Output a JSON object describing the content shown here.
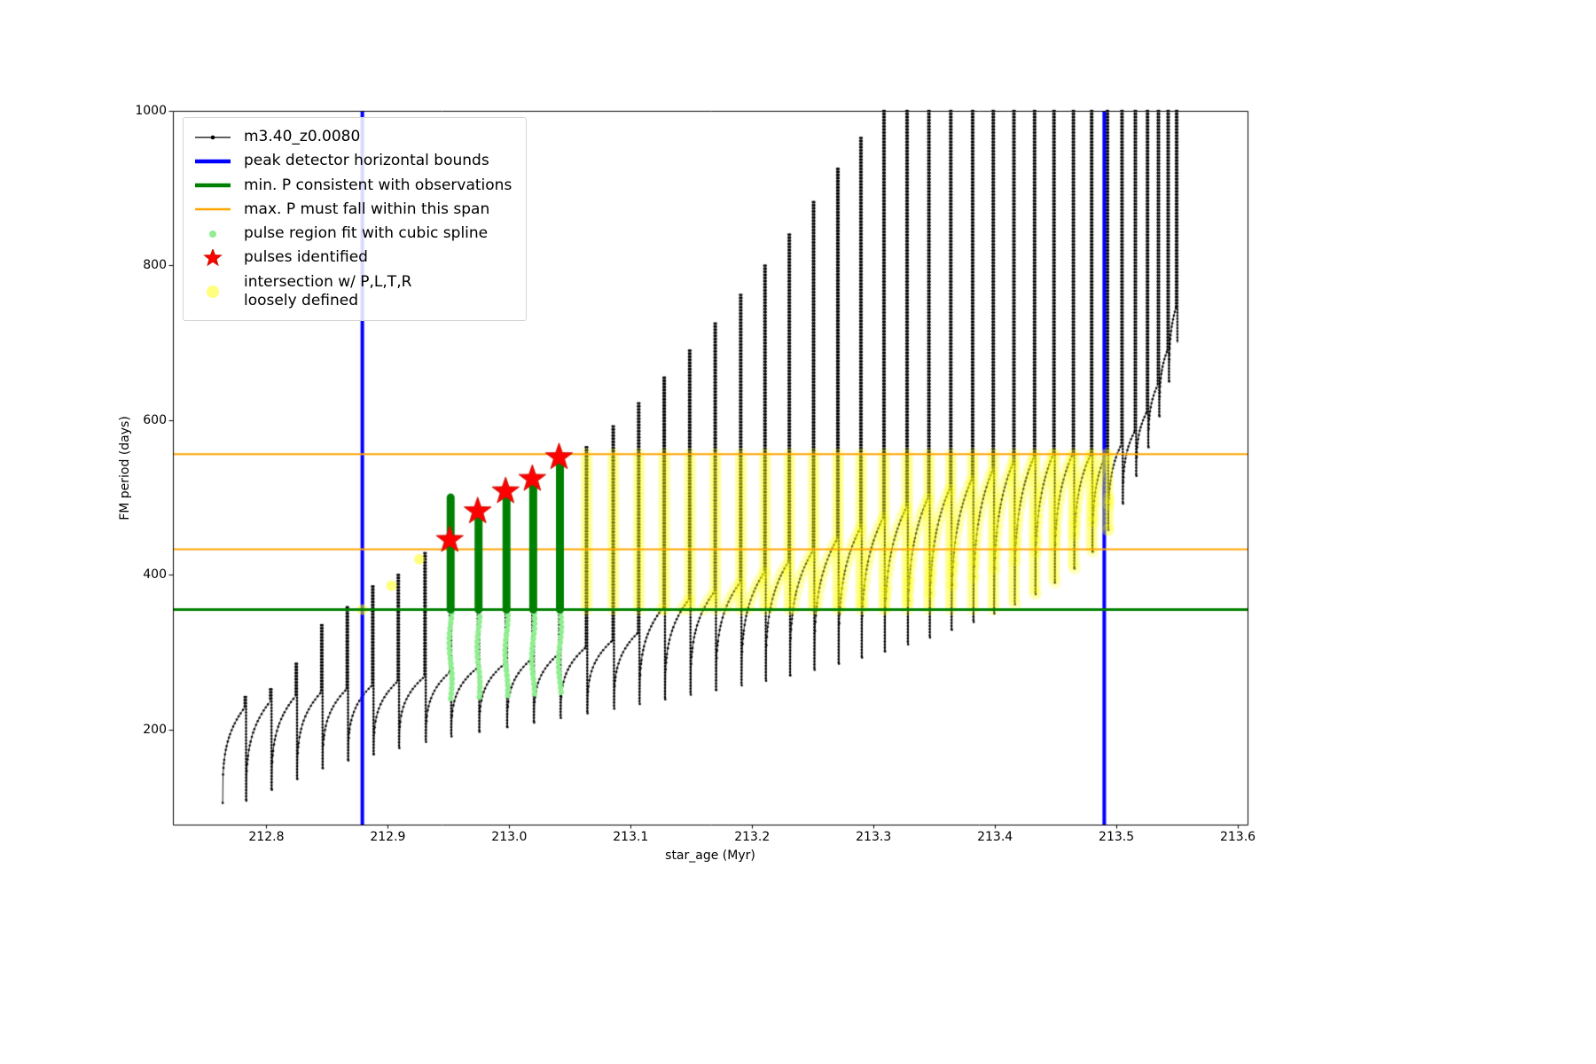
{
  "page": {
    "background": "#ffffff"
  },
  "colors": {
    "track": "#000000",
    "peak_bounds": "#0000ff",
    "min_p": "#008000",
    "max_p": "#ffa500",
    "pulse_region": "#90ee90",
    "pulses": "#ff0000",
    "intersection": "#ffff00"
  },
  "legend": {
    "items": [
      {
        "label": "m3.40_z0.0080",
        "glyph": "line-dot",
        "color_key": "track"
      },
      {
        "label": "peak detector horizontal bounds",
        "glyph": "thick-line",
        "color_key": "peak_bounds"
      },
      {
        "label": "min. P consistent with observations",
        "glyph": "thick-line",
        "color_key": "min_p"
      },
      {
        "label": "max. P must fall within this span",
        "glyph": "line",
        "color_key": "max_p"
      },
      {
        "label": "pulse region fit with cubic spline",
        "glyph": "small-dot",
        "color_key": "pulse_region"
      },
      {
        "label": "pulses identified",
        "glyph": "star",
        "color_key": "pulses"
      },
      {
        "label": "intersection w/ P,L,T,R\nloosely defined",
        "glyph": "big-dot",
        "color_key": "intersection"
      }
    ]
  },
  "chart_data": {
    "type": "line",
    "title": "",
    "xlabel": "star_age (Myr)",
    "ylabel": "FM period (days)",
    "xlim": [
      212.723,
      213.608
    ],
    "ylim": [
      77,
      1000
    ],
    "xticks": [
      212.8,
      212.9,
      213.0,
      213.1,
      213.2,
      213.3,
      213.4,
      213.5,
      213.6
    ],
    "xtick_labels": [
      "212.8",
      "212.9",
      "213.0",
      "213.1",
      "213.2",
      "213.3",
      "213.4",
      "213.5",
      "213.6"
    ],
    "yticks": [
      200,
      400,
      600,
      800,
      1000
    ],
    "ytick_labels": [
      "200",
      "400",
      "600",
      "800",
      "1000"
    ],
    "grid": false,
    "legend_position": "upper left",
    "series": [
      {
        "name": "m3.40_z0.0080",
        "color": "#000000",
        "marker": "point"
      }
    ],
    "peak_detector_bounds_x": [
      212.879,
      213.49
    ],
    "min_P_consistent_y": 355,
    "max_P_span_y": [
      433,
      556
    ],
    "pulses_identified_xy": [
      [
        212.951,
        445
      ],
      [
        212.974,
        482
      ],
      [
        212.997,
        508
      ],
      [
        213.019,
        524
      ],
      [
        213.041,
        552
      ]
    ],
    "pulse_region_columns": [
      {
        "x": 212.951,
        "top": 500,
        "dot_bottom": 240
      },
      {
        "x": 212.974,
        "top": 480,
        "dot_bottom": 242
      },
      {
        "x": 212.997,
        "top": 505,
        "dot_bottom": 244
      },
      {
        "x": 213.019,
        "top": 524,
        "dot_bottom": 246
      },
      {
        "x": 213.041,
        "top": 552,
        "dot_bottom": 248
      }
    ],
    "intersection_band": {
      "x_range": [
        213.05,
        213.494
      ],
      "y_range": [
        355,
        556
      ]
    },
    "intersection_extra_points": [
      [
        212.879,
        355
      ],
      [
        212.903,
        386
      ],
      [
        212.926,
        420
      ]
    ],
    "track_start": [
      212.764,
      105
    ],
    "track_pulses": [
      [
        212.782,
        228,
        242,
        108
      ],
      [
        212.803,
        236,
        252,
        122
      ],
      [
        212.824,
        243,
        285,
        136
      ],
      [
        212.845,
        248,
        335,
        150
      ],
      [
        212.866,
        252,
        358,
        160
      ],
      [
        212.887,
        257,
        385,
        168
      ],
      [
        212.908,
        262,
        400,
        176
      ],
      [
        212.93,
        268,
        428,
        184
      ],
      [
        212.951,
        274,
        500,
        191
      ],
      [
        212.974,
        280,
        480,
        197
      ],
      [
        212.997,
        286,
        505,
        203
      ],
      [
        213.019,
        292,
        524,
        209
      ],
      [
        213.041,
        298,
        552,
        215
      ],
      [
        213.063,
        306,
        565,
        221
      ],
      [
        213.085,
        315,
        592,
        227
      ],
      [
        213.106,
        325,
        622,
        233
      ],
      [
        213.127,
        358,
        655,
        239
      ],
      [
        213.148,
        368,
        690,
        245
      ],
      [
        213.169,
        378,
        725,
        251
      ],
      [
        213.19,
        390,
        762,
        257
      ],
      [
        213.21,
        403,
        800,
        263
      ],
      [
        213.23,
        417,
        840,
        270
      ],
      [
        213.25,
        431,
        882,
        277
      ],
      [
        213.27,
        446,
        925,
        285
      ],
      [
        213.289,
        460,
        965,
        293
      ],
      [
        213.308,
        474,
        1000,
        301
      ],
      [
        213.327,
        487,
        1000,
        310
      ],
      [
        213.345,
        500,
        1000,
        319
      ],
      [
        213.363,
        512,
        1000,
        329
      ],
      [
        213.381,
        524,
        1000,
        339
      ],
      [
        213.398,
        535,
        1000,
        350
      ],
      [
        213.415,
        545,
        1000,
        362
      ],
      [
        213.432,
        552,
        1000,
        375
      ],
      [
        213.448,
        556,
        1000,
        390
      ],
      [
        213.464,
        556,
        1000,
        408
      ],
      [
        213.479,
        556,
        1000,
        430
      ],
      [
        213.492,
        558,
        1000,
        458
      ],
      [
        213.504,
        568,
        1000,
        492
      ],
      [
        213.515,
        585,
        1000,
        528
      ],
      [
        213.525,
        610,
        1000,
        565
      ],
      [
        213.534,
        645,
        1000,
        605
      ],
      [
        213.542,
        690,
        1000,
        650
      ],
      [
        213.549,
        745,
        1000,
        700
      ]
    ]
  }
}
